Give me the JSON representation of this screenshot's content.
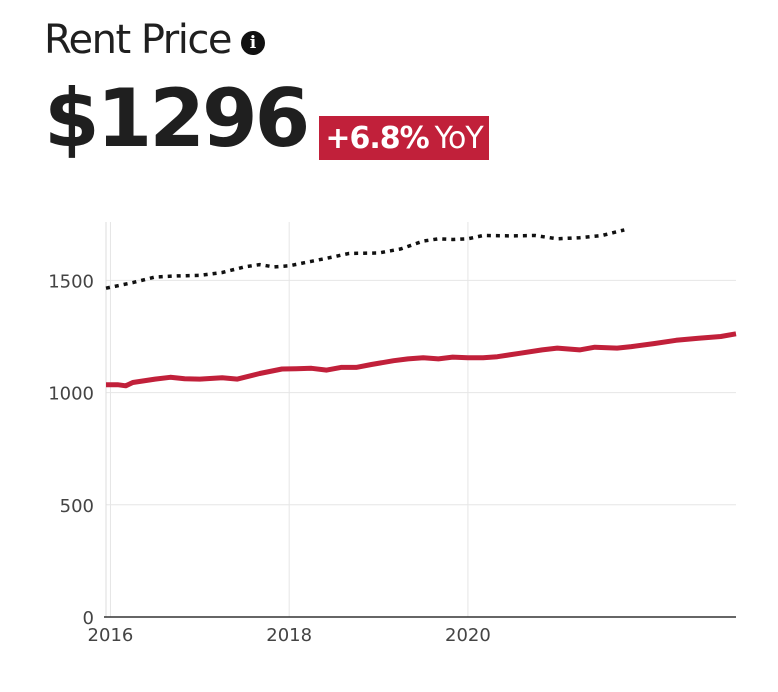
{
  "header": {
    "title": "Rent Price",
    "info_icon": "info-icon",
    "price": "$1296",
    "change_pct": "+6.8%",
    "change_label": "YoY"
  },
  "colors": {
    "primary_series": "#c1203a",
    "comparison_series": "#111111",
    "badge_background": "#c1203a"
  },
  "chart_data": {
    "type": "line",
    "title": "",
    "xlabel": "",
    "ylabel": "",
    "xlim": [
      2015.95,
      2023.0
    ],
    "ylim": [
      0,
      1760
    ],
    "x_ticks": [
      2016,
      2018,
      2020
    ],
    "x_tick_labels": [
      "2016",
      "2018",
      "2020"
    ],
    "y_ticks": [
      0,
      500,
      1000,
      1500
    ],
    "y_tick_labels": [
      "0",
      "500",
      "1000",
      "1500"
    ],
    "grid": true,
    "legend": "none",
    "series": [
      {
        "style": "dotted",
        "color": "#111111",
        "points": [
          [
            2015.95,
            1465
          ],
          [
            2016.25,
            1490
          ],
          [
            2016.5,
            1515
          ],
          [
            2016.75,
            1520
          ],
          [
            2017.0,
            1522
          ],
          [
            2017.25,
            1535
          ],
          [
            2017.5,
            1560
          ],
          [
            2017.67,
            1570
          ],
          [
            2017.83,
            1560
          ],
          [
            2018.0,
            1565
          ],
          [
            2018.25,
            1585
          ],
          [
            2018.5,
            1605
          ],
          [
            2018.67,
            1620
          ],
          [
            2019.0,
            1622
          ],
          [
            2019.25,
            1640
          ],
          [
            2019.5,
            1675
          ],
          [
            2019.67,
            1685
          ],
          [
            2019.83,
            1682
          ],
          [
            2020.0,
            1685
          ],
          [
            2020.17,
            1700
          ],
          [
            2020.5,
            1698
          ],
          [
            2020.75,
            1700
          ],
          [
            2021.0,
            1685
          ],
          [
            2021.25,
            1690
          ],
          [
            2021.5,
            1700
          ],
          [
            2021.75,
            1725
          ]
        ]
      },
      {
        "style": "solid",
        "color": "#c1203a",
        "points": [
          [
            2015.95,
            1035
          ],
          [
            2016.08,
            1035
          ],
          [
            2016.17,
            1030
          ],
          [
            2016.25,
            1045
          ],
          [
            2016.5,
            1060
          ],
          [
            2016.67,
            1068
          ],
          [
            2016.83,
            1062
          ],
          [
            2017.0,
            1060
          ],
          [
            2017.25,
            1066
          ],
          [
            2017.42,
            1060
          ],
          [
            2017.67,
            1085
          ],
          [
            2017.92,
            1105
          ],
          [
            2018.08,
            1106
          ],
          [
            2018.25,
            1108
          ],
          [
            2018.42,
            1100
          ],
          [
            2018.58,
            1112
          ],
          [
            2018.75,
            1112
          ],
          [
            2018.92,
            1125
          ],
          [
            2019.17,
            1142
          ],
          [
            2019.33,
            1150
          ],
          [
            2019.5,
            1155
          ],
          [
            2019.67,
            1150
          ],
          [
            2019.83,
            1158
          ],
          [
            2020.0,
            1155
          ],
          [
            2020.17,
            1155
          ],
          [
            2020.33,
            1160
          ],
          [
            2020.58,
            1175
          ],
          [
            2020.83,
            1190
          ],
          [
            2021.0,
            1198
          ],
          [
            2021.25,
            1190
          ],
          [
            2021.42,
            1202
          ],
          [
            2021.67,
            1198
          ],
          [
            2021.83,
            1205
          ],
          [
            2022.08,
            1218
          ],
          [
            2022.33,
            1233
          ],
          [
            2022.58,
            1242
          ],
          [
            2022.83,
            1250
          ],
          [
            2023.0,
            1262
          ]
        ]
      }
    ]
  }
}
